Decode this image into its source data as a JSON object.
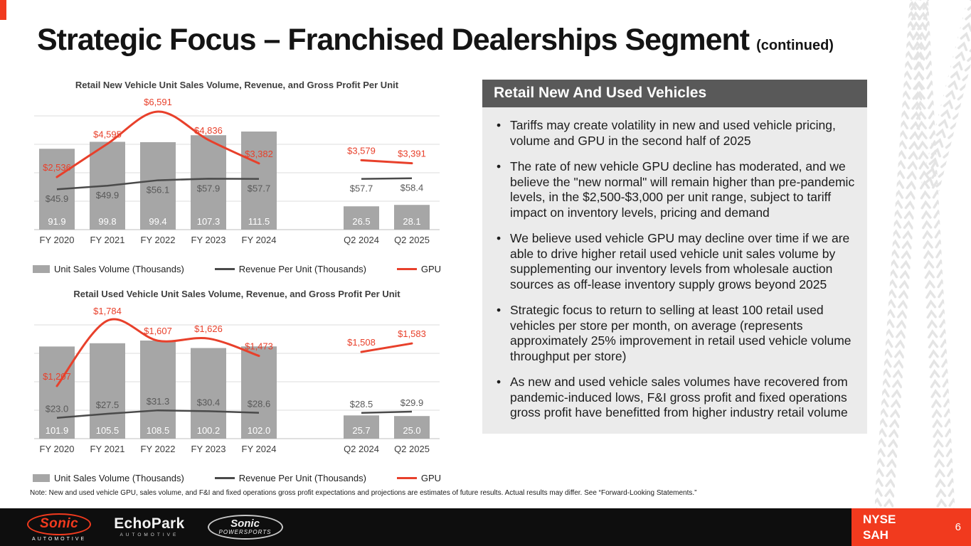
{
  "slide": {
    "title": "Strategic Focus – Franchised Dealerships Segment",
    "title_suffix": "(continued)",
    "note": "Note: New and used vehicle GPU, sales volume, and F&I and fixed operations gross profit expectations and projections are estimates of future results. Actual results may differ. See “Forward-Looking Statements.”"
  },
  "panel": {
    "header": "Retail New And Used Vehicles",
    "bullets": [
      "Tariffs may create volatility in new and used vehicle pricing, volume and GPU in the second half of 2025",
      "The rate of new vehicle GPU decline has moderated, and we believe the \"new normal\" will remain higher than pre-pandemic levels, in the $2,500-$3,000 per unit range, subject to tariff impact on inventory levels, pricing and demand",
      "We believe used vehicle GPU may decline over time if we are able to drive higher retail used vehicle unit sales volume by supplementing our inventory levels from wholesale auction sources as off-lease inventory supply grows beyond 2025",
      "Strategic focus to return to selling at least 100 retail used vehicles per store per month, on average (represents approximately 25% improvement in retail used vehicle volume throughput per store)",
      "As new and used vehicle sales volumes have recovered from pandemic-induced lows, F&I gross profit and fixed operations gross profit have benefitted from higher industry retail volume"
    ]
  },
  "chart_data": [
    {
      "type": "bar",
      "title": "Retail New Vehicle Unit Sales Volume, Revenue, and Gross Profit Per Unit",
      "categories": [
        "FY 2020",
        "FY 2021",
        "FY 2022",
        "FY 2023",
        "FY 2024",
        "Q2 2024",
        "Q2 2025"
      ],
      "group_split": 5,
      "grid": true,
      "legend_position": "bottom",
      "revenue_labels_above": false,
      "series": [
        {
          "name": "Unit Sales Volume (Thousands)",
          "type": "bar",
          "values": [
            91.9,
            99.8,
            99.4,
            107.3,
            111.5,
            26.5,
            28.1
          ],
          "labels": [
            "91.9",
            "99.8",
            "99.4",
            "107.3",
            "111.5",
            "26.5",
            "28.1"
          ]
        },
        {
          "name": "Revenue Per Unit (Thousands)",
          "type": "line",
          "values": [
            45.9,
            49.9,
            56.1,
            57.9,
            57.7,
            57.7,
            58.4
          ],
          "labels": [
            "$45.9",
            "$49.9",
            "$56.1",
            "$57.9",
            "$57.7",
            "$57.7",
            "$58.4"
          ]
        },
        {
          "name": "GPU",
          "type": "line",
          "values": [
            2536,
            4595,
            6591,
            4836,
            3382,
            3579,
            3391
          ],
          "labels": [
            "$2,536",
            "$4,595",
            "$6,591",
            "$4,836",
            "$3,382",
            "$3,579",
            "$3,391"
          ]
        }
      ]
    },
    {
      "type": "bar",
      "title": "Retail Used Vehicle Unit Sales Volume, Revenue, and Gross Profit Per Unit",
      "categories": [
        "FY 2020",
        "FY 2021",
        "FY 2022",
        "FY 2023",
        "FY 2024",
        "Q2 2024",
        "Q2 2025"
      ],
      "group_split": 5,
      "grid": true,
      "legend_position": "bottom",
      "revenue_labels_above": true,
      "series": [
        {
          "name": "Unit Sales Volume (Thousands)",
          "type": "bar",
          "values": [
            101.9,
            105.5,
            108.5,
            100.2,
            102.0,
            25.7,
            25.0
          ],
          "labels": [
            "101.9",
            "105.5",
            "108.5",
            "100.2",
            "102.0",
            "25.7",
            "25.0"
          ]
        },
        {
          "name": "Revenue Per Unit (Thousands)",
          "type": "line",
          "values": [
            23.0,
            27.5,
            31.3,
            30.4,
            28.6,
            28.5,
            29.9
          ],
          "labels": [
            "$23.0",
            "$27.5",
            "$31.3",
            "$30.4",
            "$28.6",
            "$28.5",
            "$29.9"
          ]
        },
        {
          "name": "GPU",
          "type": "line",
          "values": [
            1207,
            1784,
            1607,
            1626,
            1473,
            1508,
            1583
          ],
          "labels": [
            "$1,207",
            "$1,784",
            "$1,607",
            "$1,626",
            "$1,473",
            "$1,508",
            "$1,583"
          ]
        }
      ]
    }
  ],
  "colors": {
    "accent": "#f13a1e",
    "bar": "#a6a6a6",
    "revenue_line": "#4a4a4a",
    "gpu_line": "#e8402b",
    "panel_header_bg": "#595959",
    "panel_body_bg": "#ebebeb",
    "footer_bg": "#0e0e0e"
  },
  "footer": {
    "logos": {
      "sonic": {
        "name": "Sonic",
        "sub": "Automotive"
      },
      "echopark": {
        "name": "EchoPark",
        "sub": "Automotive"
      },
      "powersports": {
        "name": "Sonic",
        "sub": "Powersports"
      }
    },
    "ticker": {
      "line1": "NYSE",
      "line2": "SAH"
    },
    "page_number": "6"
  }
}
